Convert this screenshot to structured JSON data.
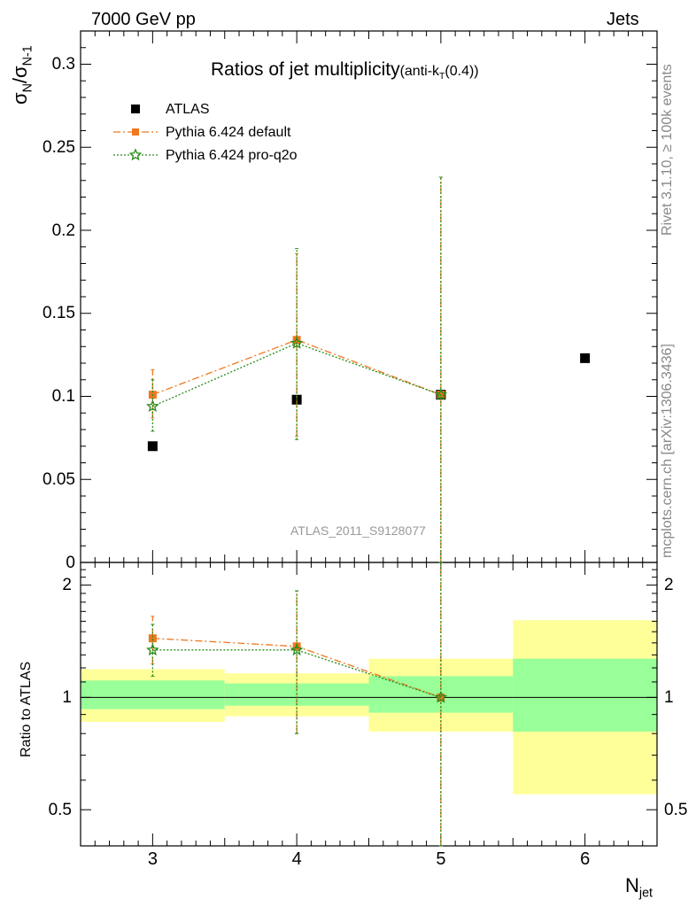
{
  "header": {
    "left": "7000 GeV pp",
    "right": "Jets"
  },
  "side_text": {
    "rivet": "Rivet 3.1.10, ≥ 100k events",
    "mcplots": "mcplots.cern.ch [arXiv:1306.3436]"
  },
  "colors": {
    "atlas": "#000000",
    "pythia_default": "#f0781e",
    "pythia_proq2o": "#2a8c1b",
    "band_inner": "#99ff99",
    "band_outer": "#ffff99"
  },
  "chart_data": [
    {
      "type": "scatter",
      "panel": "main",
      "title": "Ratios of jet multiplicity",
      "title_suffix": "(anti-k",
      "title_suffix_sub": "T",
      "title_suffix_end": "(0.4))",
      "ylabel_main": "σ",
      "ylabel_sub1": "N",
      "ylabel_mid": "/σ",
      "ylabel_sub2": "N-1",
      "analysis_label": "ATLAS_2011_S9128077",
      "xlim": [
        2.5,
        6.5
      ],
      "ylim": [
        0,
        0.32
      ],
      "yticks": [
        0,
        0.05,
        0.1,
        0.15,
        0.2,
        0.25,
        0.3
      ],
      "ytick_labels": [
        "0",
        "0.05",
        "0.1",
        "0.15",
        "0.2",
        "0.25",
        "0.3"
      ],
      "legend": [
        "ATLAS",
        "Pythia 6.424 default",
        "Pythia 6.424 pro-q2o"
      ],
      "legend_position": "top-left",
      "series": [
        {
          "name": "ATLAS",
          "x": [
            3,
            4,
            5,
            6
          ],
          "y": [
            0.07,
            0.098,
            0.101,
            0.123
          ]
        },
        {
          "name": "Pythia 6.424 default",
          "x": [
            3,
            4,
            5
          ],
          "y": [
            0.101,
            0.134,
            0.101
          ],
          "yerr_low": [
            0.087,
            0.076,
            0.0
          ],
          "yerr_high": [
            0.116,
            0.186,
            0.232
          ]
        },
        {
          "name": "Pythia 6.424 pro-q2o",
          "x": [
            3,
            4,
            5
          ],
          "y": [
            0.094,
            0.132,
            0.101
          ],
          "yerr_low": [
            0.079,
            0.074,
            0.0
          ],
          "yerr_high": [
            0.11,
            0.189,
            0.232
          ]
        }
      ]
    },
    {
      "type": "scatter",
      "panel": "ratio",
      "xlabel": "N",
      "xlabel_sub": "jet",
      "ylabel": "Ratio to ATLAS",
      "xlim": [
        2.5,
        6.5
      ],
      "ylim": [
        0.4,
        2.3
      ],
      "log_y": true,
      "xticks": [
        3,
        4,
        5,
        6
      ],
      "xtick_labels": [
        "3",
        "4",
        "5",
        "6"
      ],
      "yticks": [
        0.5,
        1,
        2
      ],
      "ytick_labels": [
        "0.5",
        "1",
        "2"
      ],
      "bands": [
        {
          "x": [
            2.5,
            3.5
          ],
          "inner": [
            0.93,
            1.11
          ],
          "outer": [
            0.86,
            1.19
          ]
        },
        {
          "x": [
            3.5,
            4.5
          ],
          "inner": [
            0.95,
            1.09
          ],
          "outer": [
            0.89,
            1.16
          ]
        },
        {
          "x": [
            4.5,
            5.5
          ],
          "inner": [
            0.91,
            1.14
          ],
          "outer": [
            0.81,
            1.27
          ]
        },
        {
          "x": [
            5.5,
            6.5
          ],
          "inner": [
            0.81,
            1.27
          ],
          "outer": [
            0.55,
            1.61
          ]
        }
      ],
      "series": [
        {
          "name": "Pythia 6.424 default",
          "x": [
            3,
            4,
            5
          ],
          "y": [
            1.44,
            1.37,
            1.0
          ],
          "yerr_low": [
            1.23,
            0.8,
            0.0
          ],
          "yerr_high": [
            1.65,
            1.93,
            2.3
          ]
        },
        {
          "name": "Pythia 6.424 pro-q2o",
          "x": [
            3,
            4,
            5
          ],
          "y": [
            1.34,
            1.34,
            1.0
          ],
          "yerr_low": [
            1.14,
            0.8,
            0.0
          ],
          "yerr_high": [
            1.57,
            1.93,
            2.3
          ]
        }
      ]
    }
  ]
}
